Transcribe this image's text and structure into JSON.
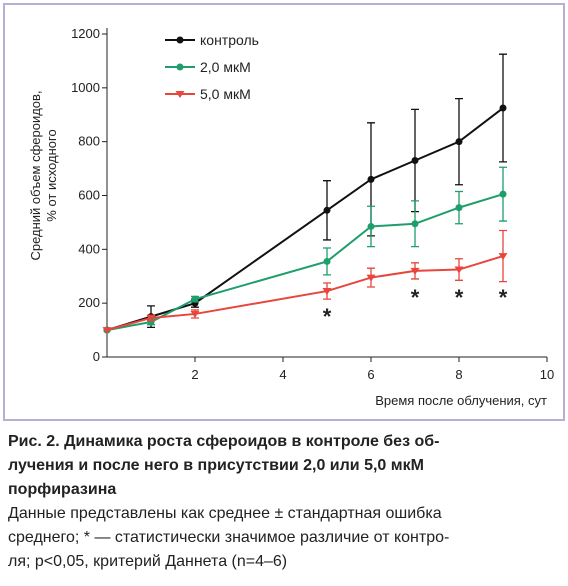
{
  "chart_data": {
    "type": "line",
    "x_label": "Время после облучения, сут",
    "y_label": [
      "Средний объем сфероидов,",
      "% от исходного"
    ],
    "x": [
      0,
      1,
      2,
      5,
      6,
      7,
      8,
      9
    ],
    "series": [
      {
        "name": "контроль",
        "color": "#111111",
        "marker": "circle",
        "values": [
          100,
          150,
          200,
          545,
          660,
          730,
          800,
          925
        ],
        "errors": [
          0,
          40,
          15,
          110,
          210,
          190,
          160,
          200
        ]
      },
      {
        "name": "2,0 мкМ",
        "color": "#1e9e6b",
        "marker": "circle",
        "values": [
          100,
          130,
          215,
          355,
          485,
          495,
          555,
          605
        ],
        "errors": [
          0,
          10,
          10,
          50,
          75,
          85,
          60,
          100
        ]
      },
      {
        "name": "5,0 мкМ",
        "color": "#e8453c",
        "marker": "triangle",
        "values": [
          100,
          145,
          160,
          245,
          295,
          320,
          325,
          375
        ],
        "errors": [
          0,
          10,
          15,
          30,
          35,
          30,
          40,
          95
        ]
      }
    ],
    "xlim": [
      0,
      10
    ],
    "xticks": [
      2,
      4,
      6,
      8,
      10
    ],
    "ylim": [
      0,
      1200
    ],
    "yticks": [
      0,
      200,
      400,
      600,
      800,
      1000,
      1200
    ],
    "annotations": [
      {
        "text": "*",
        "x": 5,
        "y": 160
      },
      {
        "text": "*",
        "x": 7,
        "y": 230
      },
      {
        "text": "*",
        "x": 8,
        "y": 230
      },
      {
        "text": "*",
        "x": 9,
        "y": 230
      }
    ]
  },
  "caption": {
    "title_lines": [
      "Рис. 2. Динамика роста сфероидов в контроле без об-",
      "лучения и после него в присутствии 2,0 или 5,0 мкМ",
      "порфиразина"
    ],
    "body_lines": [
      "Данные представлены как среднее ± стандартная ошибка",
      "среднего; * — статистически значимое различие от контро-",
      "ля; p<0,05, критерий Даннета (n=4–6)"
    ]
  }
}
